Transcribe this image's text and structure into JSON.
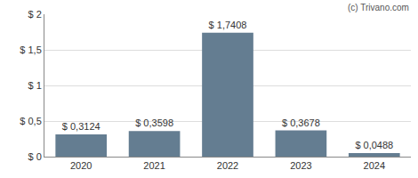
{
  "chart_data": {
    "type": "bar",
    "categories": [
      "2020",
      "2021",
      "2022",
      "2023",
      "2024"
    ],
    "values": [
      0.3124,
      0.3598,
      1.7408,
      0.3678,
      0.0488
    ],
    "value_labels": [
      "$ 0,3124",
      "$ 0,3598",
      "$ 1,7408",
      "$ 0,3678",
      "$ 0,0488"
    ],
    "data_labels": true,
    "color": "#647d91",
    "ylim": [
      0,
      2
    ],
    "yticks": [
      {
        "value": 0,
        "label": "$ 0"
      },
      {
        "value": 0.5,
        "label": "$ 0,5"
      },
      {
        "value": 1,
        "label": "$ 1"
      },
      {
        "value": 1.5,
        "label": "$ 1,5"
      },
      {
        "value": 2,
        "label": "$ 2"
      }
    ],
    "grid": true,
    "annotations": [
      "(c) Trivano.com"
    ]
  }
}
